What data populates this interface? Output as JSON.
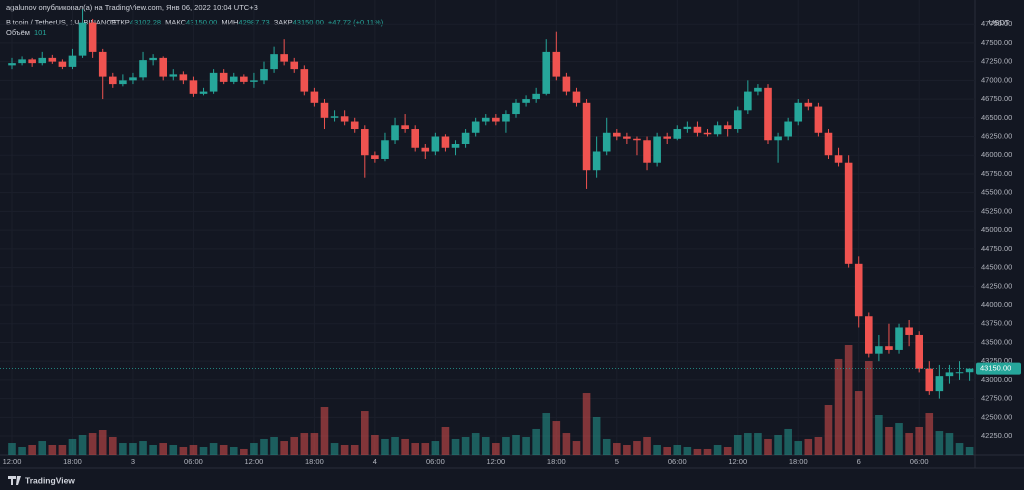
{
  "header": {
    "publisher": "agalunov опубликовал(а) на TradingView.com, Янв 06, 2022 10:04 UTC+3"
  },
  "footer": {
    "brand": "TradingView"
  },
  "chart_data": {
    "type": "candlestick",
    "title": "Bitcoin / TetherUS, 1Ч, BINANCE",
    "ohlc_legend": [
      {
        "label": "ОТКР",
        "value": "43102.28"
      },
      {
        "label": "МАКС",
        "value": "43150.00"
      },
      {
        "label": "МИН",
        "value": "42987.73"
      },
      {
        "label": "ЗАКР",
        "value": "43150.00"
      }
    ],
    "change_label": "+47.72 (+0.11%)",
    "currency": "USDT",
    "last_price_label": "43150.00",
    "up_color": "#26a69a",
    "down_color": "#ef5350",
    "open": [
      47200,
      47230,
      47280,
      47230,
      47300,
      47250,
      47180,
      47330,
      47770,
      47380,
      47050,
      46950,
      47000,
      47040,
      47270,
      47300,
      47050,
      47080,
      47000,
      46820,
      46850,
      47100,
      46980,
      47050,
      46980,
      47000,
      47150,
      47350,
      47250,
      47150,
      46850,
      46700,
      46500,
      46520,
      46450,
      46350,
      46000,
      45950,
      46200,
      46400,
      46350,
      46100,
      46050,
      46250,
      46100,
      46150,
      46300,
      46450,
      46500,
      46450,
      46550,
      46700,
      46750,
      46820,
      47380,
      47050,
      46850,
      46700,
      45800,
      46050,
      46300,
      46250,
      46220,
      46200,
      45900,
      46250,
      46220,
      46350,
      46380,
      46300,
      46280,
      46400,
      46350,
      46600,
      46850,
      46900,
      46200,
      46250,
      46450,
      46700,
      46650,
      46300,
      46000,
      45900,
      44550,
      43850,
      43350,
      43450,
      43400,
      43700,
      43600,
      43150,
      42850,
      43050,
      43100,
      43102.28
    ],
    "high": [
      47300,
      47320,
      47300,
      47380,
      47340,
      47280,
      47420,
      47950,
      47820,
      47420,
      47100,
      47080,
      47100,
      47380,
      47350,
      47320,
      47150,
      47120,
      47050,
      46900,
      47150,
      47150,
      47100,
      47080,
      47100,
      47250,
      47450,
      47550,
      47300,
      47200,
      46900,
      46750,
      46600,
      46600,
      46500,
      46400,
      46050,
      46300,
      46500,
      46550,
      46400,
      46150,
      46300,
      46280,
      46200,
      46350,
      46500,
      46550,
      46550,
      46600,
      46750,
      46800,
      46900,
      47550,
      47650,
      47100,
      46900,
      46750,
      46250,
      46500,
      46350,
      46300,
      46250,
      46250,
      46300,
      46300,
      46400,
      46450,
      46450,
      46350,
      46450,
      46450,
      46650,
      47000,
      46950,
      46950,
      46300,
      46500,
      46750,
      46750,
      46700,
      46350,
      46100,
      46000,
      44650,
      43900,
      43600,
      43750,
      43750,
      43800,
      43650,
      43250,
      43200,
      43200,
      43250,
      43150
    ],
    "low": [
      47150,
      47200,
      47180,
      47200,
      47220,
      47150,
      47150,
      47300,
      47300,
      46750,
      46900,
      46920,
      46950,
      47000,
      47200,
      47000,
      47000,
      46950,
      46780,
      46800,
      46820,
      46950,
      46950,
      46950,
      46900,
      46950,
      47100,
      47200,
      47100,
      46800,
      46650,
      46350,
      46450,
      46400,
      46300,
      45700,
      45900,
      45920,
      46150,
      46300,
      46050,
      45950,
      46000,
      46050,
      46000,
      46100,
      46250,
      46400,
      46400,
      46300,
      46500,
      46650,
      46700,
      46800,
      47000,
      46800,
      46650,
      45550,
      45700,
      46000,
      46200,
      46150,
      46000,
      45800,
      45850,
      46150,
      46200,
      46300,
      46250,
      46250,
      46250,
      46250,
      46300,
      46550,
      46800,
      46150,
      45900,
      46200,
      46400,
      46600,
      46250,
      45950,
      45850,
      44500,
      43700,
      43300,
      43250,
      43350,
      43350,
      43450,
      43100,
      42800,
      42750,
      42950,
      43000,
      42987.73
    ],
    "close": [
      47230,
      47280,
      47230,
      47300,
      47250,
      47180,
      47330,
      47770,
      47380,
      47050,
      46950,
      47000,
      47040,
      47270,
      47300,
      47050,
      47080,
      47000,
      46820,
      46850,
      47100,
      46980,
      47050,
      46980,
      47000,
      47150,
      47350,
      47250,
      47150,
      46850,
      46700,
      46500,
      46520,
      46450,
      46350,
      46000,
      45950,
      46200,
      46400,
      46350,
      46100,
      46050,
      46250,
      46100,
      46150,
      46300,
      46450,
      46500,
      46450,
      46550,
      46700,
      46750,
      46820,
      47380,
      47050,
      46850,
      46700,
      45800,
      46050,
      46300,
      46250,
      46220,
      46200,
      45900,
      46250,
      46220,
      46350,
      46380,
      46300,
      46280,
      46400,
      46350,
      46600,
      46850,
      46900,
      46200,
      46250,
      46450,
      46700,
      46650,
      46300,
      46000,
      45900,
      44550,
      43850,
      43350,
      43450,
      43400,
      43700,
      43600,
      43150,
      42850,
      43050,
      43100,
      43102.28,
      43150
    ],
    "volume": {
      "name": "Объём",
      "values": [
        151,
        101,
        126,
        176,
        126,
        126,
        202,
        252,
        277,
        315,
        227,
        151,
        151,
        176,
        126,
        151,
        126,
        101,
        126,
        101,
        151,
        126,
        101,
        76,
        151,
        202,
        227,
        176,
        227,
        277,
        277,
        605,
        151,
        126,
        126,
        554,
        252,
        202,
        227,
        202,
        151,
        151,
        176,
        353,
        202,
        227,
        277,
        227,
        151,
        227,
        252,
        227,
        328,
        529,
        428,
        277,
        176,
        781,
        479,
        202,
        151,
        126,
        176,
        227,
        126,
        101,
        126,
        101,
        76,
        76,
        126,
        101,
        252,
        277,
        277,
        202,
        252,
        328,
        176,
        202,
        227,
        630,
        1210,
        1386,
        806,
        1184,
        504,
        353,
        403,
        277,
        353,
        529,
        302,
        277,
        151,
        101
      ]
    },
    "ylim": [
      41997,
      48073
    ],
    "yticks": [
      {
        "value": 42250,
        "label": "42250.00"
      },
      {
        "value": 42500,
        "label": "42500.00"
      },
      {
        "value": 42750,
        "label": "42750.00"
      },
      {
        "value": 43000,
        "label": "43000.00"
      },
      {
        "value": 43250,
        "label": "43250.00"
      },
      {
        "value": 43500,
        "label": "43500.00"
      },
      {
        "value": 43750,
        "label": "43750.00"
      },
      {
        "value": 44000,
        "label": "44000.00"
      },
      {
        "value": 44250,
        "label": "44250.00"
      },
      {
        "value": 44500,
        "label": "44500.00"
      },
      {
        "value": 44750,
        "label": "44750.00"
      },
      {
        "value": 45000,
        "label": "45000.00"
      },
      {
        "value": 45250,
        "label": "45250.00"
      },
      {
        "value": 45500,
        "label": "45500.00"
      },
      {
        "value": 45750,
        "label": "45750.00"
      },
      {
        "value": 46000,
        "label": "46000.00"
      },
      {
        "value": 46250,
        "label": "46250.00"
      },
      {
        "value": 46500,
        "label": "46500.00"
      },
      {
        "value": 46750,
        "label": "46750.00"
      },
      {
        "value": 47000,
        "label": "47000.00"
      },
      {
        "value": 47250,
        "label": "47250.00"
      },
      {
        "value": 47500,
        "label": "47500.00"
      },
      {
        "value": 47750,
        "label": "47750.00"
      }
    ],
    "xticks": [
      {
        "value": 0,
        "label": "12:00"
      },
      {
        "value": 6,
        "label": "18:00"
      },
      {
        "value": 12,
        "label": "3"
      },
      {
        "value": 18,
        "label": "06:00"
      },
      {
        "value": 24,
        "label": "12:00"
      },
      {
        "value": 30,
        "label": "18:00"
      },
      {
        "value": 36,
        "label": "4"
      },
      {
        "value": 42,
        "label": "06:00"
      },
      {
        "value": 48,
        "label": "12:00"
      },
      {
        "value": 54,
        "label": "18:00"
      },
      {
        "value": 60,
        "label": "5"
      },
      {
        "value": 66,
        "label": "06:00"
      },
      {
        "value": 72,
        "label": "12:00"
      },
      {
        "value": 78,
        "label": "18:00"
      },
      {
        "value": 84,
        "label": "6"
      },
      {
        "value": 90,
        "label": "06:00"
      }
    ],
    "grid": true
  }
}
